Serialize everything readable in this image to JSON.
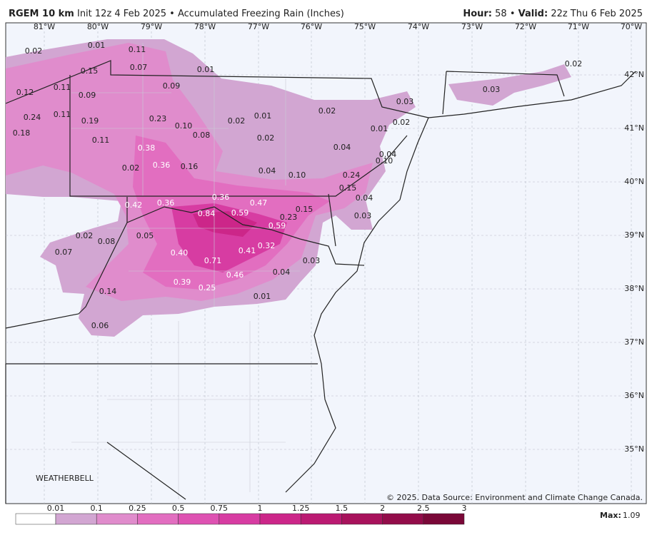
{
  "header": {
    "model": "RGEM 10 km",
    "description": "Init 12z 4 Feb 2025 • Accumulated Freezing Rain (Inches)",
    "hour_label": "Hour:",
    "hour": "58 •",
    "valid_label": "Valid:",
    "valid": "22z Thu 6 Feb 2025"
  },
  "map": {
    "longitudes": [
      "81°W",
      "80°W",
      "79°W",
      "78°W",
      "77°W",
      "76°W",
      "75°W",
      "74°W",
      "73°W",
      "72°W",
      "71°W",
      "70°W"
    ],
    "latitudes": [
      "42°N",
      "41°N",
      "40°N",
      "39°N",
      "38°N",
      "37°N",
      "36°N",
      "35°N"
    ],
    "point_labels": [
      "0.02",
      "0.01",
      "0.11",
      "0.15",
      "0.07",
      "0.01",
      "0.12",
      "0.11",
      "0.09",
      "0.09",
      "0.24",
      "0.11",
      "0.19",
      "0.23",
      "0.10",
      "0.01",
      "0.02",
      "0.02",
      "0.03",
      "0.18",
      "0.08",
      "0.02",
      "0.01",
      "0.02",
      "0.11",
      "0.38",
      "0.04",
      "0.04",
      "0.10",
      "0.02",
      "0.36",
      "0.16",
      "0.04",
      "0.10",
      "0.24",
      "0.15",
      "0.36",
      "0.04",
      "0.42",
      "0.36",
      "0.47",
      "0.84",
      "0.59",
      "0.23",
      "0.15",
      "0.03",
      "0.59",
      "0.05",
      "0.02",
      "0.08",
      "0.32",
      "0.41",
      "0.07",
      "0.40",
      "0.71",
      "0.03",
      "0.04",
      "0.46",
      "0.39",
      "0.25",
      "0.14",
      "0.01",
      "0.06",
      "0.03",
      "0.02"
    ],
    "watermark": "WEATHERBELL",
    "credit": "© 2025. Data Source: Environment and Climate Change Canada."
  },
  "legend": {
    "ticks": [
      "0.01",
      "0.1",
      "0.25",
      "0.5",
      "0.75",
      "1",
      "1.25",
      "1.5",
      "2",
      "2.5",
      "3"
    ],
    "colors": [
      "#ffffff",
      "#d2a6d2",
      "#e08ccc",
      "#e26ec0",
      "#de52b2",
      "#d73ca2",
      "#cc2689",
      "#bb1a72",
      "#a8125c",
      "#930c4a",
      "#7a0838"
    ],
    "max_label": "Max:",
    "max": "1.09"
  }
}
